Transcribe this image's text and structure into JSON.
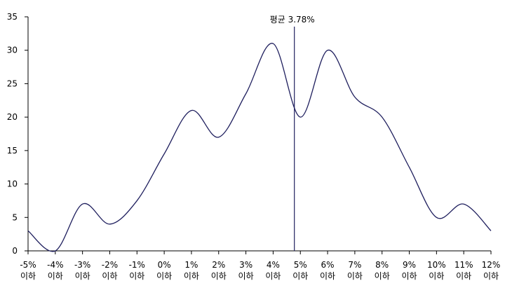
{
  "chart_data": {
    "type": "line",
    "title": "",
    "xlabel": "",
    "ylabel": "",
    "ylim": [
      0,
      35
    ],
    "y_ticks": [
      "0",
      "5",
      "10",
      "15",
      "20",
      "25",
      "30",
      "35"
    ],
    "grid": false,
    "categories": [
      {
        "value": "-5%",
        "suffix": "이하"
      },
      {
        "value": "-4%",
        "suffix": "이하"
      },
      {
        "value": "-3%",
        "suffix": "이하"
      },
      {
        "value": "-2%",
        "suffix": "이하"
      },
      {
        "value": "-1%",
        "suffix": "이하"
      },
      {
        "value": "0%",
        "suffix": "이하"
      },
      {
        "value": "1%",
        "suffix": "이하"
      },
      {
        "value": "2%",
        "suffix": "이하"
      },
      {
        "value": "3%",
        "suffix": "이하"
      },
      {
        "value": "4%",
        "suffix": "이하"
      },
      {
        "value": "5%",
        "suffix": "이하"
      },
      {
        "value": "6%",
        "suffix": "이하"
      },
      {
        "value": "7%",
        "suffix": "이하"
      },
      {
        "value": "8%",
        "suffix": "이하"
      },
      {
        "value": "9%",
        "suffix": "이하"
      },
      {
        "value": "10%",
        "suffix": "이하"
      },
      {
        "value": "11%",
        "suffix": "이하"
      },
      {
        "value": "12%",
        "suffix": "이하"
      }
    ],
    "series": [
      {
        "color": "#1f1f5e",
        "values": [
          3,
          0,
          7,
          4,
          7.5,
          14.5,
          21,
          17,
          23.5,
          31,
          20,
          30,
          23,
          20,
          12.5,
          5,
          7,
          3
        ]
      }
    ],
    "annotations": [
      {
        "type": "vline",
        "x_index": 9.78,
        "label": "평균 3.78%",
        "color": "#1f1f5e"
      }
    ]
  }
}
